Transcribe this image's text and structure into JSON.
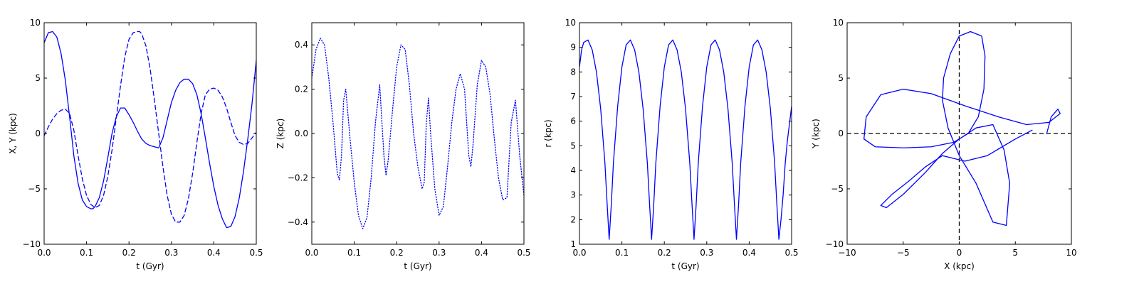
{
  "colors": {
    "series": "#0000ff",
    "axis": "#000000",
    "ref_lines": "#000000"
  },
  "chart_data": [
    {
      "type": "line",
      "xlabel": "t (Gyr)",
      "ylabel": "X, Y (kpc)",
      "xlim": [
        0,
        0.5
      ],
      "ylim": [
        -10,
        10
      ],
      "xticks": [
        0,
        0.1,
        0.2,
        0.3,
        0.4,
        0.5
      ],
      "xtick_labels": [
        "0.0",
        "0.1",
        "0.2",
        "0.3",
        "0.4",
        "0.5"
      ],
      "yticks": [
        -10,
        -5,
        0,
        5,
        10
      ],
      "ytick_labels": [
        "−10",
        "−5",
        "0",
        "5",
        "10"
      ],
      "grid": false,
      "series": [
        {
          "style": "solid",
          "x": [
            0.0,
            0.01,
            0.02,
            0.03,
            0.04,
            0.05,
            0.06,
            0.07,
            0.08,
            0.09,
            0.1,
            0.11,
            0.115,
            0.12,
            0.13,
            0.14,
            0.15,
            0.16,
            0.17,
            0.18,
            0.19,
            0.2,
            0.21,
            0.22,
            0.23,
            0.24,
            0.25,
            0.26,
            0.27,
            0.28,
            0.29,
            0.3,
            0.31,
            0.32,
            0.33,
            0.34,
            0.35,
            0.36,
            0.37,
            0.38,
            0.39,
            0.4,
            0.41,
            0.42,
            0.43,
            0.44,
            0.45,
            0.46,
            0.47,
            0.48,
            0.49,
            0.5
          ],
          "y": [
            8.2,
            9.1,
            9.2,
            8.7,
            7.2,
            4.8,
            1.5,
            -2.0,
            -4.5,
            -6.0,
            -6.6,
            -6.8,
            -6.8,
            -6.6,
            -5.8,
            -4.3,
            -2.2,
            0.0,
            1.5,
            2.3,
            2.3,
            1.7,
            1.0,
            0.2,
            -0.5,
            -0.9,
            -1.1,
            -1.2,
            -1.3,
            -0.4,
            1.2,
            2.8,
            3.9,
            4.6,
            4.9,
            4.9,
            4.5,
            3.5,
            1.8,
            -0.4,
            -2.7,
            -4.8,
            -6.5,
            -7.7,
            -8.5,
            -8.4,
            -7.5,
            -5.8,
            -3.4,
            -0.5,
            2.7,
            6.6
          ]
        },
        {
          "style": "dashed",
          "x": [
            0.0,
            0.01,
            0.02,
            0.03,
            0.04,
            0.05,
            0.06,
            0.07,
            0.08,
            0.09,
            0.1,
            0.11,
            0.12,
            0.13,
            0.14,
            0.15,
            0.16,
            0.17,
            0.18,
            0.19,
            0.2,
            0.21,
            0.22,
            0.225,
            0.23,
            0.24,
            0.25,
            0.26,
            0.27,
            0.28,
            0.29,
            0.3,
            0.31,
            0.32,
            0.33,
            0.34,
            0.35,
            0.36,
            0.37,
            0.38,
            0.39,
            0.4,
            0.41,
            0.42,
            0.43,
            0.44,
            0.45,
            0.46,
            0.47,
            0.48,
            0.49,
            0.5
          ],
          "y": [
            -0.2,
            0.6,
            1.3,
            1.8,
            2.1,
            2.2,
            1.8,
            0.3,
            -2.0,
            -4.1,
            -5.6,
            -6.4,
            -6.7,
            -6.5,
            -5.6,
            -3.9,
            -1.5,
            1.4,
            4.3,
            6.9,
            8.5,
            9.1,
            9.2,
            9.2,
            9.0,
            7.9,
            5.8,
            3.0,
            0.0,
            -3.0,
            -5.6,
            -7.3,
            -8.0,
            -8.0,
            -7.4,
            -5.9,
            -3.6,
            -0.8,
            1.8,
            3.5,
            4.0,
            4.1,
            3.9,
            3.3,
            2.3,
            1.0,
            -0.2,
            -0.8,
            -1.0,
            -0.9,
            -0.4,
            0.1
          ]
        }
      ]
    },
    {
      "type": "line",
      "xlabel": "t (Gyr)",
      "ylabel": "Z (kpc)",
      "xlim": [
        0,
        0.5
      ],
      "ylim": [
        -0.5,
        0.5
      ],
      "xticks": [
        0,
        0.1,
        0.2,
        0.3,
        0.4,
        0.5
      ],
      "xtick_labels": [
        "0.0",
        "0.1",
        "0.2",
        "0.3",
        "0.4",
        "0.5"
      ],
      "yticks": [
        -0.4,
        -0.2,
        0,
        0.2,
        0.4
      ],
      "ytick_labels": [
        "−0.4",
        "−0.2",
        "0.0",
        "0.2",
        "0.4"
      ],
      "grid": false,
      "series": [
        {
          "style": "dotted",
          "x": [
            0.0,
            0.01,
            0.02,
            0.03,
            0.04,
            0.05,
            0.06,
            0.065,
            0.07,
            0.075,
            0.08,
            0.09,
            0.1,
            0.11,
            0.12,
            0.13,
            0.14,
            0.15,
            0.16,
            0.17,
            0.175,
            0.18,
            0.19,
            0.2,
            0.21,
            0.22,
            0.23,
            0.24,
            0.25,
            0.26,
            0.265,
            0.27,
            0.275,
            0.28,
            0.29,
            0.3,
            0.31,
            0.32,
            0.33,
            0.34,
            0.35,
            0.36,
            0.37,
            0.375,
            0.38,
            0.39,
            0.4,
            0.41,
            0.42,
            0.43,
            0.44,
            0.45,
            0.46,
            0.47,
            0.48,
            0.49,
            0.5
          ],
          "y": [
            0.25,
            0.38,
            0.43,
            0.4,
            0.25,
            0.05,
            -0.18,
            -0.21,
            -0.1,
            0.15,
            0.2,
            -0.02,
            -0.22,
            -0.37,
            -0.43,
            -0.38,
            -0.2,
            0.05,
            0.22,
            -0.1,
            -0.19,
            -0.12,
            0.1,
            0.3,
            0.4,
            0.38,
            0.22,
            0.0,
            -0.15,
            -0.25,
            -0.22,
            0.05,
            0.16,
            0.0,
            -0.25,
            -0.37,
            -0.33,
            -0.15,
            0.05,
            0.2,
            0.27,
            0.2,
            -0.1,
            -0.15,
            -0.05,
            0.22,
            0.33,
            0.3,
            0.18,
            -0.02,
            -0.2,
            -0.3,
            -0.29,
            0.05,
            0.15,
            -0.1,
            -0.28
          ]
        }
      ]
    },
    {
      "type": "line",
      "xlabel": "t (Gyr)",
      "ylabel": "r (kpc)",
      "xlim": [
        0,
        0.5
      ],
      "ylim": [
        1,
        10
      ],
      "xticks": [
        0,
        0.1,
        0.2,
        0.3,
        0.4,
        0.5
      ],
      "xtick_labels": [
        "0.0",
        "0.1",
        "0.2",
        "0.3",
        "0.4",
        "0.5"
      ],
      "yticks": [
        1,
        2,
        3,
        4,
        5,
        6,
        7,
        8,
        9,
        10
      ],
      "ytick_labels": [
        "1",
        "2",
        "3",
        "4",
        "5",
        "6",
        "7",
        "8",
        "9",
        "10"
      ],
      "grid": false,
      "series": [
        {
          "style": "solid",
          "x": [
            0.0,
            0.005,
            0.01,
            0.02,
            0.03,
            0.04,
            0.05,
            0.06,
            0.065,
            0.07,
            0.075,
            0.08,
            0.09,
            0.1,
            0.11,
            0.12,
            0.13,
            0.14,
            0.15,
            0.16,
            0.165,
            0.17,
            0.175,
            0.18,
            0.19,
            0.2,
            0.21,
            0.22,
            0.23,
            0.24,
            0.25,
            0.26,
            0.265,
            0.27,
            0.275,
            0.28,
            0.29,
            0.3,
            0.31,
            0.32,
            0.33,
            0.34,
            0.35,
            0.36,
            0.365,
            0.37,
            0.375,
            0.38,
            0.39,
            0.4,
            0.41,
            0.42,
            0.43,
            0.44,
            0.45,
            0.46,
            0.465,
            0.47,
            0.475,
            0.48,
            0.485,
            0.49,
            0.5
          ],
          "y": [
            8.2,
            8.9,
            9.2,
            9.3,
            8.9,
            8.0,
            6.5,
            4.3,
            2.7,
            1.2,
            2.6,
            4.3,
            6.6,
            8.2,
            9.1,
            9.3,
            8.9,
            8.0,
            6.5,
            4.3,
            2.7,
            1.2,
            2.6,
            4.3,
            6.6,
            8.2,
            9.1,
            9.3,
            8.9,
            8.0,
            6.5,
            4.3,
            2.7,
            1.2,
            2.6,
            4.3,
            6.6,
            8.2,
            9.1,
            9.3,
            8.9,
            8.0,
            6.5,
            4.3,
            2.7,
            1.2,
            2.6,
            4.3,
            6.6,
            8.2,
            9.1,
            9.3,
            8.9,
            8.0,
            6.5,
            4.3,
            2.7,
            1.2,
            2.0,
            3.0,
            4.3,
            5.2,
            6.6
          ]
        }
      ]
    },
    {
      "type": "line",
      "xlabel": "X (kpc)",
      "ylabel": "Y (kpc)",
      "xlim": [
        -10,
        10
      ],
      "ylim": [
        -10,
        10
      ],
      "xticks": [
        -10,
        -5,
        0,
        5,
        10
      ],
      "xtick_labels": [
        "−10",
        "−5",
        "0",
        "5",
        "10"
      ],
      "yticks": [
        -10,
        -5,
        0,
        5,
        10
      ],
      "ytick_labels": [
        "−10",
        "−5",
        "0",
        "5",
        "10"
      ],
      "grid": false,
      "reference_lines": {
        "x": 0,
        "y": 0,
        "style": "dashed"
      },
      "series": [
        {
          "style": "solid",
          "x": [
            6.5,
            5.0,
            2.5,
            0.5,
            -1.5,
            -3.0,
            -4.5,
            -6.0,
            -7.0,
            -6.5,
            -5.0,
            -3.0,
            -1.5,
            0.0,
            1.5,
            3.0,
            4.0,
            4.5,
            4.2,
            3.0,
            1.5,
            0.0,
            -1.0,
            -1.5,
            -1.4,
            -0.8,
            0.0,
            1.0,
            2.0,
            2.3,
            2.2,
            1.7,
            0.8,
            -0.5,
            -2.5,
            -5.0,
            -7.5,
            -8.5,
            -8.3,
            -7.0,
            -5.0,
            -2.5,
            0.5,
            3.5,
            6.0,
            8.0,
            9.0,
            8.8,
            8.2,
            7.8
          ],
          "y": [
            0.3,
            -0.5,
            -2.0,
            -2.5,
            -2.0,
            -3.0,
            -4.3,
            -5.5,
            -6.5,
            -6.7,
            -5.5,
            -3.5,
            -1.8,
            -0.5,
            0.5,
            0.8,
            -1.5,
            -4.5,
            -8.3,
            -8.0,
            -4.5,
            -2.0,
            0.5,
            3.0,
            5.0,
            7.2,
            8.8,
            9.2,
            8.8,
            7.0,
            4.0,
            1.5,
            0.0,
            -0.8,
            -1.2,
            -1.3,
            -1.2,
            -0.5,
            1.5,
            3.5,
            4.0,
            3.6,
            2.5,
            1.5,
            0.8,
            1.0,
            1.8,
            2.2,
            1.5,
            0.0
          ]
        }
      ]
    }
  ]
}
